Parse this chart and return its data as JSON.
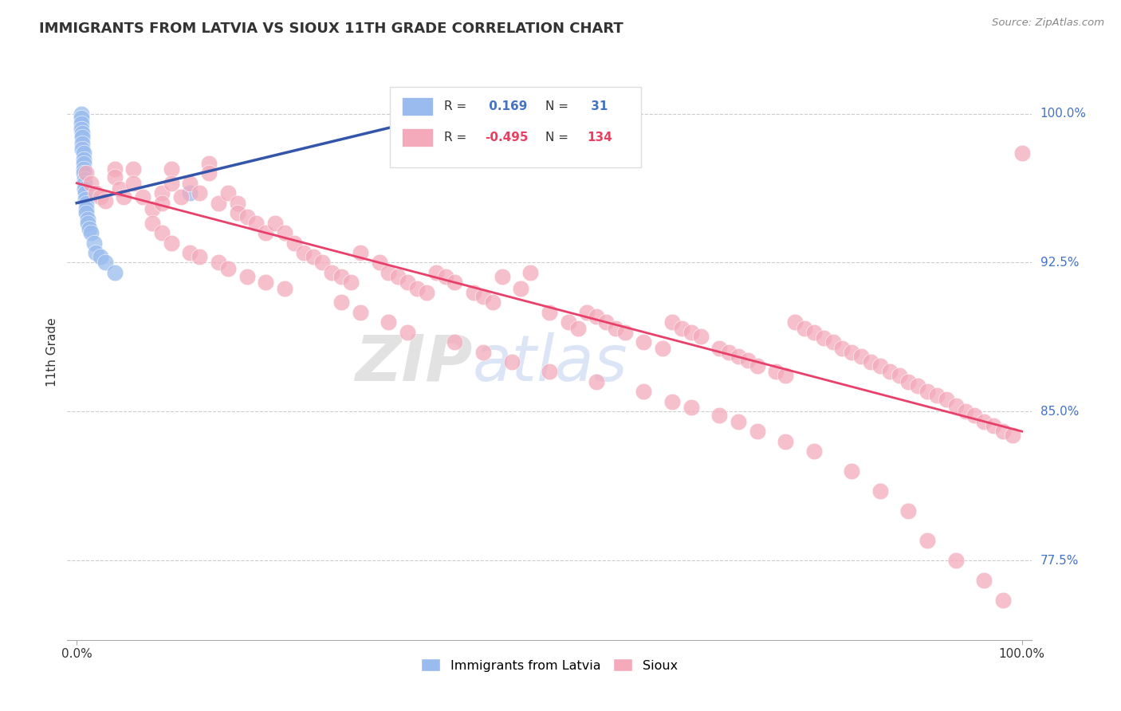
{
  "title": "IMMIGRANTS FROM LATVIA VS SIOUX 11TH GRADE CORRELATION CHART",
  "source": "Source: ZipAtlas.com",
  "ylabel": "11th Grade",
  "blue_color": "#99BBEE",
  "pink_color": "#F4AABB",
  "blue_line_color": "#3355AA",
  "pink_line_color": "#E8406A",
  "watermark_zip": "ZIP",
  "watermark_atlas": "atlas",
  "legend_r1_label": "R = ",
  "legend_r1_val": " 0.169",
  "legend_n1_label": "N = ",
  "legend_n1_val": " 31",
  "legend_r2_label": "R = ",
  "legend_r2_val": "-0.495",
  "legend_n2_label": "N = ",
  "legend_n2_val": "134",
  "ytick_positions": [
    0.775,
    0.85,
    0.925,
    1.0
  ],
  "ytick_labels": [
    "77.5%",
    "85.0%",
    "92.5%",
    "100.0%"
  ],
  "ymin": 0.735,
  "ymax": 1.025,
  "xmin": -0.01,
  "xmax": 1.01,
  "blue_line_x": [
    0.0,
    0.48
  ],
  "blue_line_y": [
    0.955,
    1.01
  ],
  "pink_line_x": [
    0.0,
    1.0
  ],
  "pink_line_y": [
    0.965,
    0.84
  ],
  "blue_x": [
    0.005,
    0.005,
    0.005,
    0.005,
    0.006,
    0.006,
    0.006,
    0.006,
    0.007,
    0.007,
    0.007,
    0.007,
    0.007,
    0.008,
    0.008,
    0.008,
    0.009,
    0.009,
    0.01,
    0.01,
    0.01,
    0.012,
    0.012,
    0.013,
    0.015,
    0.018,
    0.02,
    0.025,
    0.03,
    0.04,
    0.12
  ],
  "blue_y": [
    1.0,
    0.998,
    0.995,
    0.992,
    0.99,
    0.988,
    0.985,
    0.982,
    0.98,
    0.977,
    0.975,
    0.972,
    0.97,
    0.967,
    0.965,
    0.962,
    0.96,
    0.957,
    0.955,
    0.952,
    0.95,
    0.947,
    0.945,
    0.942,
    0.94,
    0.935,
    0.93,
    0.928,
    0.925,
    0.92,
    0.96
  ],
  "pink_x": [
    0.01,
    0.015,
    0.02,
    0.025,
    0.03,
    0.04,
    0.04,
    0.045,
    0.05,
    0.06,
    0.06,
    0.07,
    0.08,
    0.09,
    0.09,
    0.1,
    0.1,
    0.11,
    0.12,
    0.13,
    0.14,
    0.14,
    0.15,
    0.16,
    0.17,
    0.17,
    0.18,
    0.19,
    0.2,
    0.21,
    0.22,
    0.23,
    0.24,
    0.25,
    0.26,
    0.27,
    0.28,
    0.29,
    0.3,
    0.32,
    0.33,
    0.34,
    0.35,
    0.36,
    0.37,
    0.38,
    0.39,
    0.4,
    0.42,
    0.43,
    0.44,
    0.45,
    0.47,
    0.48,
    0.5,
    0.52,
    0.53,
    0.54,
    0.55,
    0.56,
    0.57,
    0.58,
    0.6,
    0.62,
    0.63,
    0.64,
    0.65,
    0.66,
    0.68,
    0.69,
    0.7,
    0.71,
    0.72,
    0.74,
    0.75,
    0.76,
    0.77,
    0.78,
    0.79,
    0.8,
    0.81,
    0.82,
    0.83,
    0.84,
    0.85,
    0.86,
    0.87,
    0.88,
    0.89,
    0.9,
    0.91,
    0.92,
    0.93,
    0.94,
    0.95,
    0.96,
    0.97,
    0.98,
    0.99,
    1.0,
    0.08,
    0.09,
    0.1,
    0.12,
    0.13,
    0.15,
    0.16,
    0.18,
    0.2,
    0.22,
    0.28,
    0.3,
    0.33,
    0.35,
    0.4,
    0.43,
    0.46,
    0.5,
    0.55,
    0.6,
    0.63,
    0.65,
    0.68,
    0.7,
    0.72,
    0.75,
    0.78,
    0.82,
    0.85,
    0.88,
    0.9,
    0.93,
    0.96,
    0.98
  ],
  "pink_y": [
    0.97,
    0.965,
    0.96,
    0.958,
    0.956,
    0.972,
    0.968,
    0.962,
    0.958,
    0.972,
    0.965,
    0.958,
    0.952,
    0.96,
    0.955,
    0.972,
    0.965,
    0.958,
    0.965,
    0.96,
    0.975,
    0.97,
    0.955,
    0.96,
    0.955,
    0.95,
    0.948,
    0.945,
    0.94,
    0.945,
    0.94,
    0.935,
    0.93,
    0.928,
    0.925,
    0.92,
    0.918,
    0.915,
    0.93,
    0.925,
    0.92,
    0.918,
    0.915,
    0.912,
    0.91,
    0.92,
    0.918,
    0.915,
    0.91,
    0.908,
    0.905,
    0.918,
    0.912,
    0.92,
    0.9,
    0.895,
    0.892,
    0.9,
    0.898,
    0.895,
    0.892,
    0.89,
    0.885,
    0.882,
    0.895,
    0.892,
    0.89,
    0.888,
    0.882,
    0.88,
    0.878,
    0.876,
    0.873,
    0.87,
    0.868,
    0.895,
    0.892,
    0.89,
    0.887,
    0.885,
    0.882,
    0.88,
    0.878,
    0.875,
    0.873,
    0.87,
    0.868,
    0.865,
    0.863,
    0.86,
    0.858,
    0.856,
    0.853,
    0.85,
    0.848,
    0.845,
    0.843,
    0.84,
    0.838,
    0.98,
    0.945,
    0.94,
    0.935,
    0.93,
    0.928,
    0.925,
    0.922,
    0.918,
    0.915,
    0.912,
    0.905,
    0.9,
    0.895,
    0.89,
    0.885,
    0.88,
    0.875,
    0.87,
    0.865,
    0.86,
    0.855,
    0.852,
    0.848,
    0.845,
    0.84,
    0.835,
    0.83,
    0.82,
    0.81,
    0.8,
    0.785,
    0.775,
    0.765,
    0.755
  ]
}
